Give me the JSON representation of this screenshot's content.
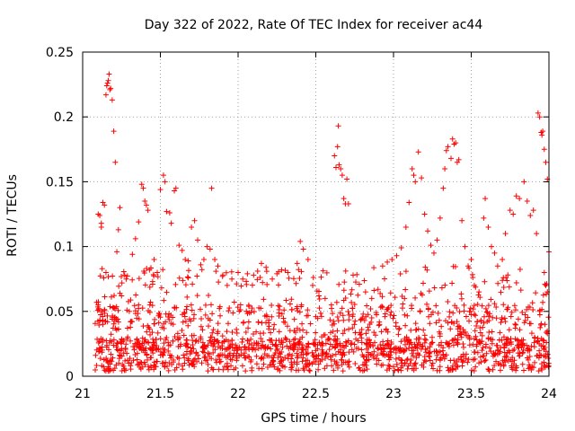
{
  "chart_data": {
    "type": "scatter",
    "title": "Day 322 of 2022, Rate Of TEC Index for receiver ac44",
    "xlabel": "GPS time / hours",
    "ylabel": "ROTI / TECUs",
    "xlim": [
      21,
      24
    ],
    "ylim": [
      0,
      0.25
    ],
    "x_ticks": [
      21,
      21.5,
      22,
      22.5,
      23,
      23.5,
      24
    ],
    "x_tick_labels": [
      "21",
      "21.5",
      "22",
      "22.5",
      "23",
      "23.5",
      "24"
    ],
    "y_ticks": [
      0,
      0.05,
      0.1,
      0.15,
      0.2,
      0.25
    ],
    "y_tick_labels": [
      "0",
      "0.05",
      "0.1",
      "0.15",
      "0.2",
      "0.25"
    ],
    "grid": true,
    "marker": "+",
    "marker_color": "#ff0000",
    "series": [
      {
        "name": "ROTI",
        "points": [
          [
            21.1,
            0.125
          ],
          [
            21.11,
            0.124
          ],
          [
            21.12,
            0.118
          ],
          [
            21.13,
            0.134
          ],
          [
            21.14,
            0.132
          ],
          [
            21.15,
            0.217
          ],
          [
            21.155,
            0.224
          ],
          [
            21.16,
            0.226
          ],
          [
            21.165,
            0.228
          ],
          [
            21.17,
            0.233
          ],
          [
            21.175,
            0.221
          ],
          [
            21.18,
            0.222
          ],
          [
            21.19,
            0.213
          ],
          [
            21.2,
            0.189
          ],
          [
            21.21,
            0.165
          ],
          [
            21.22,
            0.096
          ],
          [
            21.23,
            0.113
          ],
          [
            21.24,
            0.13
          ],
          [
            21.15,
            0.08
          ],
          [
            21.12,
            0.115
          ],
          [
            21.09,
            0.057
          ],
          [
            21.1,
            0.055
          ],
          [
            21.11,
            0.043
          ],
          [
            21.13,
            0.04
          ],
          [
            21.16,
            0.042
          ],
          [
            21.19,
            0.044
          ],
          [
            21.24,
            0.064
          ],
          [
            21.25,
            0.062
          ],
          [
            21.27,
            0.078
          ],
          [
            21.28,
            0.075
          ],
          [
            21.3,
            0.05
          ],
          [
            21.32,
            0.094
          ],
          [
            21.34,
            0.106
          ],
          [
            21.36,
            0.119
          ],
          [
            21.38,
            0.148
          ],
          [
            21.39,
            0.145
          ],
          [
            21.4,
            0.135
          ],
          [
            21.41,
            0.132
          ],
          [
            21.42,
            0.128
          ],
          [
            21.43,
            0.082
          ],
          [
            21.45,
            0.073
          ],
          [
            21.46,
            0.09
          ],
          [
            21.48,
            0.08
          ],
          [
            21.5,
            0.144
          ],
          [
            21.52,
            0.155
          ],
          [
            21.53,
            0.15
          ],
          [
            21.54,
            0.127
          ],
          [
            21.56,
            0.126
          ],
          [
            21.57,
            0.118
          ],
          [
            21.59,
            0.143
          ],
          [
            21.6,
            0.145
          ],
          [
            21.62,
            0.101
          ],
          [
            21.64,
            0.097
          ],
          [
            21.66,
            0.09
          ],
          [
            21.68,
            0.089
          ],
          [
            21.7,
            0.115
          ],
          [
            21.72,
            0.12
          ],
          [
            21.74,
            0.105
          ],
          [
            21.76,
            0.086
          ],
          [
            21.78,
            0.09
          ],
          [
            21.8,
            0.1
          ],
          [
            21.82,
            0.098
          ],
          [
            21.83,
            0.145
          ],
          [
            21.85,
            0.09
          ],
          [
            21.87,
            0.085
          ],
          [
            21.9,
            0.077
          ],
          [
            21.93,
            0.07
          ],
          [
            21.96,
            0.075
          ],
          [
            22.0,
            0.08
          ],
          [
            22.03,
            0.075
          ],
          [
            22.06,
            0.079
          ],
          [
            22.1,
            0.078
          ],
          [
            22.15,
            0.087
          ],
          [
            22.18,
            0.084
          ],
          [
            22.22,
            0.075
          ],
          [
            22.25,
            0.079
          ],
          [
            22.28,
            0.082
          ],
          [
            22.32,
            0.08
          ],
          [
            22.38,
            0.087
          ],
          [
            22.4,
            0.104
          ],
          [
            22.42,
            0.098
          ],
          [
            22.45,
            0.09
          ],
          [
            22.48,
            0.07
          ],
          [
            22.52,
            0.062
          ],
          [
            22.56,
            0.06
          ],
          [
            22.6,
            0.055
          ],
          [
            22.62,
            0.17
          ],
          [
            22.63,
            0.161
          ],
          [
            22.64,
            0.177
          ],
          [
            22.645,
            0.193
          ],
          [
            22.65,
            0.163
          ],
          [
            22.66,
            0.16
          ],
          [
            22.67,
            0.155
          ],
          [
            22.68,
            0.137
          ],
          [
            22.69,
            0.133
          ],
          [
            22.7,
            0.152
          ],
          [
            22.71,
            0.133
          ],
          [
            22.74,
            0.078
          ],
          [
            22.78,
            0.071
          ],
          [
            22.82,
            0.065
          ],
          [
            22.86,
            0.06
          ],
          [
            22.9,
            0.067
          ],
          [
            22.93,
            0.085
          ],
          [
            22.96,
            0.088
          ],
          [
            22.99,
            0.09
          ],
          [
            23.02,
            0.093
          ],
          [
            23.05,
            0.099
          ],
          [
            23.08,
            0.115
          ],
          [
            23.1,
            0.134
          ],
          [
            23.12,
            0.16
          ],
          [
            23.13,
            0.155
          ],
          [
            23.14,
            0.15
          ],
          [
            23.16,
            0.173
          ],
          [
            23.18,
            0.153
          ],
          [
            23.2,
            0.125
          ],
          [
            23.22,
            0.112
          ],
          [
            23.24,
            0.101
          ],
          [
            23.26,
            0.095
          ],
          [
            23.28,
            0.105
          ],
          [
            23.3,
            0.122
          ],
          [
            23.32,
            0.145
          ],
          [
            23.33,
            0.16
          ],
          [
            23.34,
            0.174
          ],
          [
            23.35,
            0.177
          ],
          [
            23.37,
            0.168
          ],
          [
            23.38,
            0.183
          ],
          [
            23.39,
            0.179
          ],
          [
            23.4,
            0.18
          ],
          [
            23.41,
            0.165
          ],
          [
            23.42,
            0.167
          ],
          [
            23.44,
            0.12
          ],
          [
            23.46,
            0.1
          ],
          [
            23.48,
            0.085
          ],
          [
            23.5,
            0.09
          ],
          [
            23.52,
            0.07
          ],
          [
            23.55,
            0.065
          ],
          [
            23.58,
            0.122
          ],
          [
            23.59,
            0.137
          ],
          [
            23.61,
            0.115
          ],
          [
            23.63,
            0.1
          ],
          [
            23.65,
            0.095
          ],
          [
            23.67,
            0.085
          ],
          [
            23.7,
            0.09
          ],
          [
            23.72,
            0.11
          ],
          [
            23.75,
            0.128
          ],
          [
            23.77,
            0.125
          ],
          [
            23.79,
            0.139
          ],
          [
            23.81,
            0.137
          ],
          [
            23.84,
            0.15
          ],
          [
            23.86,
            0.135
          ],
          [
            23.88,
            0.124
          ],
          [
            23.9,
            0.128
          ],
          [
            23.92,
            0.11
          ],
          [
            23.93,
            0.203
          ],
          [
            23.94,
            0.2
          ],
          [
            23.95,
            0.188
          ],
          [
            23.955,
            0.186
          ],
          [
            23.96,
            0.189
          ],
          [
            23.97,
            0.175
          ],
          [
            23.98,
            0.165
          ],
          [
            23.99,
            0.152
          ],
          [
            24.0,
            0.096
          ],
          [
            23.97,
            0.08
          ],
          [
            23.98,
            0.07
          ],
          [
            23.99,
            0.065
          ],
          [
            23.96,
            0.057
          ],
          [
            23.94,
            0.05
          ],
          [
            23.99,
            0.033
          ]
        ]
      }
    ]
  }
}
